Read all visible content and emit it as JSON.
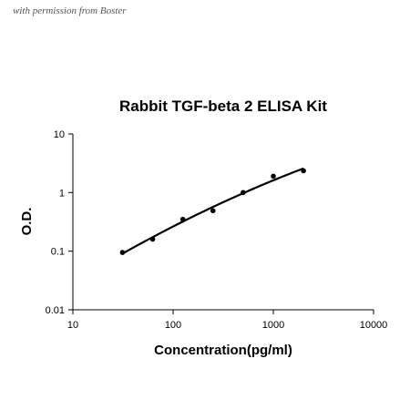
{
  "watermark": "with permission from Boster",
  "chart_data": {
    "type": "scatter",
    "title": "Rabbit TGF-beta 2 ELISA Kit",
    "xlabel": "Concentration(pg/ml)",
    "ylabel": "O.D.",
    "xscale": "log",
    "yscale": "log",
    "xlim": [
      10,
      10000
    ],
    "ylim": [
      0.01,
      10
    ],
    "xticks": [
      "10",
      "100",
      "1000",
      "10000"
    ],
    "yticks": [
      "0.01",
      "0.1",
      "1",
      "10"
    ],
    "grid": false,
    "series": [
      {
        "x": [
          31.25,
          62.5,
          125,
          250,
          500,
          1000,
          2000
        ],
        "y": [
          0.095,
          0.16,
          0.35,
          0.49,
          1.0,
          1.9,
          2.35
        ],
        "fit_curve": true
      }
    ]
  }
}
